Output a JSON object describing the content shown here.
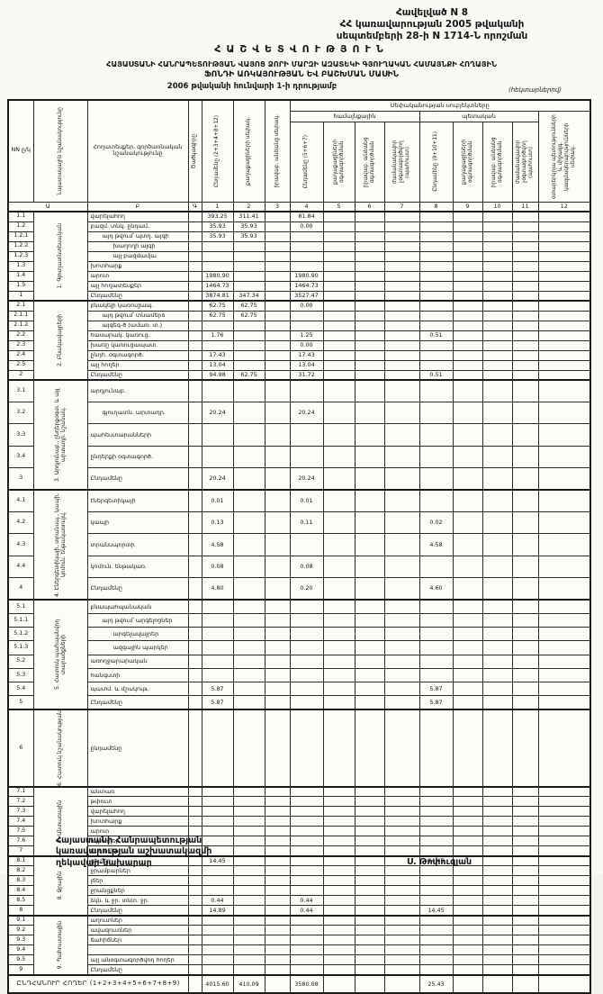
{
  "header": {
    "appendix_line1": "Հավելված N 8",
    "appendix_line2": "ՀՀ կառավարության 2005 թվականի",
    "appendix_line3": "սեպտեմբերի 28-ի N 1714-Ն որոշման",
    "title": "ՀԱՇՎԵՏՎՈՒԹՅՈՒՆ",
    "subtitle1": "ՀԱՅԱՍՏԱՆԻ ՀԱՆՐԱՊԵՏՈՒԹՅԱՆ ՎԱՅՈՑ ՁՈՐԻ ՄԱՐԶԻ ԱԶԱՏԵԿԻ ԳՅՈՒՂԱԿԱՆ ՀԱՄԱՅՆՔԻ ՀՈՂԱՅԻՆ",
    "subtitle2": "ՖՈՆԴԻ ԱՌԿԱՅՈՒԹՅԱՆ ԵՎ ԲԱՇԽՄԱՆ ՄԱՍԻՆ",
    "subtitle3": "2006 թվականի հունվարի 1-ի դրությամբ",
    "unit_note": "(հեկտարներով)"
  },
  "table": {
    "corner": {
      "nn": "NN ը/կ",
      "purpose": "Նպատակային նշանակությունը",
      "name": "Հողատեսքեր, գործառնական նշանակությունը",
      "code": "Ծածկագիրը"
    },
    "group_title": "Սեփականության սուբյեկտները",
    "groups": {
      "community": "համայնքային",
      "state": "պետական"
    },
    "pre_columns": [
      {
        "num": "1",
        "label": "Ընդամենը (2+3+4+8+12)"
      },
      {
        "num": "2",
        "label": "քաղաքացիների սեփակ."
      },
      {
        "num": "3",
        "label": "իրավաբ. անձանց սեփակ."
      }
    ],
    "community_columns": [
      {
        "num": "4",
        "label": "Ընդամենը (5+6+7)"
      },
      {
        "num": "5",
        "label": "քաղաքացիների օգտագործման"
      },
      {
        "num": "6",
        "label": "իրավաբ. անձանց օգտագործման"
      },
      {
        "num": "7",
        "label": "ժամանակավոր չօգտագործվող (պահուստ)"
      }
    ],
    "state_columns": [
      {
        "num": "8",
        "label": "Ընդամենը (9+10+11)"
      },
      {
        "num": "9",
        "label": "քաղաքացիների օգտագործման"
      },
      {
        "num": "10",
        "label": "իրավաբ. անձանց օգտագործման"
      },
      {
        "num": "11",
        "label": "ժամանակավոր չօգտագործվող (պահուստ)"
      }
    ],
    "last_column": {
      "num": "12",
      "label": "օտարերկրյա պետությունների և միջազգ. կազմակերպությունների սեփակ."
    },
    "letter_row": [
      "Ա",
      "Բ",
      "Գ",
      "1",
      "2",
      "3",
      "4",
      "5",
      "6",
      "7",
      "8",
      "9",
      "10",
      "11",
      "12"
    ],
    "sections": [
      {
        "category": "1. Գյուղատնտեսական",
        "rows": [
          {
            "num": "1.1",
            "name": "վարելահող",
            "values": {
              "1": "393.25",
              "2": "311.41",
              "4": "81.84"
            }
          },
          {
            "num": "1.2",
            "name": "բազմ. տնկ. ընդամ.",
            "values": {
              "1": "35.93",
              "2": "35.93",
              "4": "0.00"
            }
          },
          {
            "num": "1.2.1",
            "name": "այդ թվում՝ պտղ. այգի",
            "indent": 1,
            "values": {
              "1": "35.93",
              "2": "35.93"
            }
          },
          {
            "num": "1.2.2",
            "name": "խաղողի այգի",
            "indent": 2,
            "values": {}
          },
          {
            "num": "1.2.3",
            "name": "այլ բազմամյա",
            "indent": 2,
            "values": {}
          },
          {
            "num": "1.3",
            "name": "խոտհարք",
            "values": {}
          },
          {
            "num": "1.4",
            "name": "արոտ",
            "values": {
              "1": "1980.90",
              "4": "1980.90"
            }
          },
          {
            "num": "1.5",
            "name": "այլ հողատեսքեր",
            "values": {
              "1": "1464.73",
              "4": "1464.73"
            }
          },
          {
            "num": "1",
            "name": "Ընդամենը",
            "values": {
              "1": "3874.81",
              "2": "347.34",
              "4": "3527.47"
            }
          }
        ]
      },
      {
        "category": "2. Բնակավայրերի",
        "rows": [
          {
            "num": "2.1",
            "name": "բնակելի կառուցապ.",
            "values": {
              "1": "62.75",
              "2": "62.75",
              "4": "0.00"
            }
          },
          {
            "num": "2.1.1",
            "name": "այդ թվում՝ տնամերձ",
            "indent": 1,
            "values": {
              "1": "62.75",
              "2": "62.75"
            }
          },
          {
            "num": "2.1.2",
            "name": "այգեգ-ծ (ամառ. տ.)",
            "indent": 1,
            "values": {}
          },
          {
            "num": "2.2",
            "name": "հասարակ. կառուց.",
            "values": {
              "1": "1.76",
              "4": "1.25",
              "8": "0.51"
            }
          },
          {
            "num": "2.3",
            "name": "խառը կառուցապատ.",
            "values": {
              "4": "0.00"
            }
          },
          {
            "num": "2.4",
            "name": "ընդհ. օգտագործ.",
            "values": {
              "1": "17.43",
              "4": "17.43"
            }
          },
          {
            "num": "2.5",
            "name": "այլ հողեր",
            "values": {
              "1": "13.04",
              "4": "13.04"
            }
          },
          {
            "num": "2",
            "name": "Ընդամենը",
            "values": {
              "1": "94.98",
              "2": "62.75",
              "4": "31.72",
              "8": "0.51"
            }
          }
        ]
      },
      {
        "category": "3. Արդյունաբ., ընդերքօգտ. և այլ արտադր. նշանակ.",
        "rows": [
          {
            "num": "3.1",
            "name": "արդյունաբ.",
            "values": {}
          },
          {
            "num": "3.2",
            "name": "գյուղատն. արտադր.",
            "indent": 1,
            "values": {
              "1": "20.24",
              "4": "20.24"
            }
          },
          {
            "num": "3.3",
            "name": "պահեստարանների",
            "values": {}
          },
          {
            "num": "3.4",
            "name": "ընդերքի օգտագործ.",
            "values": {}
          },
          {
            "num": "3",
            "name": "Ընդամենը",
            "values": {
              "1": "20.24",
              "4": "20.24"
            }
          }
        ]
      },
      {
        "category": "4. Էներգետիկայի, տրանսպ., կապի, կոմուն. ենթակառուցվ.",
        "rows": [
          {
            "num": "4.1",
            "name": "էներգետիկայի",
            "values": {
              "1": "0.01",
              "4": "0.01"
            }
          },
          {
            "num": "4.2",
            "name": "կապի",
            "values": {
              "1": "0.13",
              "4": "0.11",
              "8": "0.02"
            }
          },
          {
            "num": "4.3",
            "name": "տրանսպորտի",
            "values": {
              "1": "4.58",
              "8": "4.58"
            }
          },
          {
            "num": "4.4",
            "name": "կոմուն. ենթակառ.",
            "values": {
              "1": "0.08",
              "4": "0.08"
            }
          },
          {
            "num": "4",
            "name": "Ընդամենը",
            "values": {
              "1": "4.80",
              "4": "0.20",
              "8": "4.60"
            }
          }
        ]
      },
      {
        "category": "5. Հատուկ պահպանվող տարածքների",
        "rows": [
          {
            "num": "5.1",
            "name": "բնապահպանական",
            "values": {}
          },
          {
            "num": "5.1.1",
            "name": "այդ թվում՝ արգելոցներ",
            "indent": 1,
            "values": {}
          },
          {
            "num": "5.1.2",
            "name": "արգելավայրեր",
            "indent": 2,
            "values": {}
          },
          {
            "num": "5.1.3",
            "name": "ազգային պարկեր",
            "indent": 2,
            "values": {}
          },
          {
            "num": "5.2",
            "name": "առողջարարական",
            "values": {}
          },
          {
            "num": "5.3",
            "name": "հանգստի",
            "values": {}
          },
          {
            "num": "5.4",
            "name": "պատմ. և մշակութ.",
            "values": {
              "1": "5.87",
              "8": "5.87"
            }
          },
          {
            "num": "5",
            "name": "Ընդամենը",
            "values": {
              "1": "5.87",
              "8": "5.87"
            }
          }
        ]
      },
      {
        "category": "6. Հատուկ նշանակության",
        "rows": [
          {
            "num": "6",
            "name": "ընդամենը",
            "tall": true,
            "values": {}
          }
        ]
      },
      {
        "category": "7. Անտառային",
        "rows": [
          {
            "num": "7.1",
            "name": "անտառ",
            "values": {}
          },
          {
            "num": "7.2",
            "name": "թփուտ",
            "values": {}
          },
          {
            "num": "7.3",
            "name": "վարելահող",
            "values": {}
          },
          {
            "num": "7.4",
            "name": "խոտհարք",
            "values": {}
          },
          {
            "num": "7.5",
            "name": "արոտ",
            "values": {}
          },
          {
            "num": "7.6",
            "name": "այլ հողեր",
            "values": {}
          },
          {
            "num": "7",
            "name": "Ընդամենը",
            "values": {}
          }
        ]
      },
      {
        "category": "8. Ջրային",
        "rows": [
          {
            "num": "8.1",
            "name": "գետեր",
            "values": {
              "1": "14.45",
              "8": "14.45"
            }
          },
          {
            "num": "8.2",
            "name": "ջրամբարներ",
            "values": {}
          },
          {
            "num": "8.3",
            "name": "լճեր",
            "values": {}
          },
          {
            "num": "8.4",
            "name": "ջրանցքներ",
            "values": {}
          },
          {
            "num": "8.5",
            "name": "ձկն. և ջր. տնտ. ջր.",
            "values": {
              "1": "0.44",
              "4": "0.44"
            }
          },
          {
            "num": "8",
            "name": "Ընդամենը",
            "values": {
              "1": "14.89",
              "4": "0.44",
              "8": "14.45"
            }
          }
        ]
      },
      {
        "category": "9. Պահուստային",
        "rows": [
          {
            "num": "9.1",
            "name": "աղուտներ",
            "values": {}
          },
          {
            "num": "9.2",
            "name": "ավազուտներ",
            "values": {}
          },
          {
            "num": "9.3",
            "name": "ճահիճներ",
            "values": {}
          },
          {
            "num": "9.4",
            "name": "",
            "values": {}
          },
          {
            "num": "9.5",
            "name": "այլ անօգտագործվող հողեր",
            "values": {}
          },
          {
            "num": "9",
            "name": "Ընդամենը",
            "values": {}
          }
        ]
      }
    ],
    "grand_total": {
      "label": "ԸՆԴՀԱՆՈՒՐ ՀՈՂԵՐ (1+2+3+4+5+6+7+8+9)",
      "values": {
        "1": "4015.60",
        "2": "410.09",
        "4": "3580.08",
        "8": "25.43"
      }
    }
  },
  "footer": {
    "left_line1": "Հայաստանի Հանրապետության",
    "left_line2": "կառավարության աշխատակազմի",
    "left_line3": "ղեկավար-նախարար",
    "signature": "Ս. Թոփուզյան"
  }
}
